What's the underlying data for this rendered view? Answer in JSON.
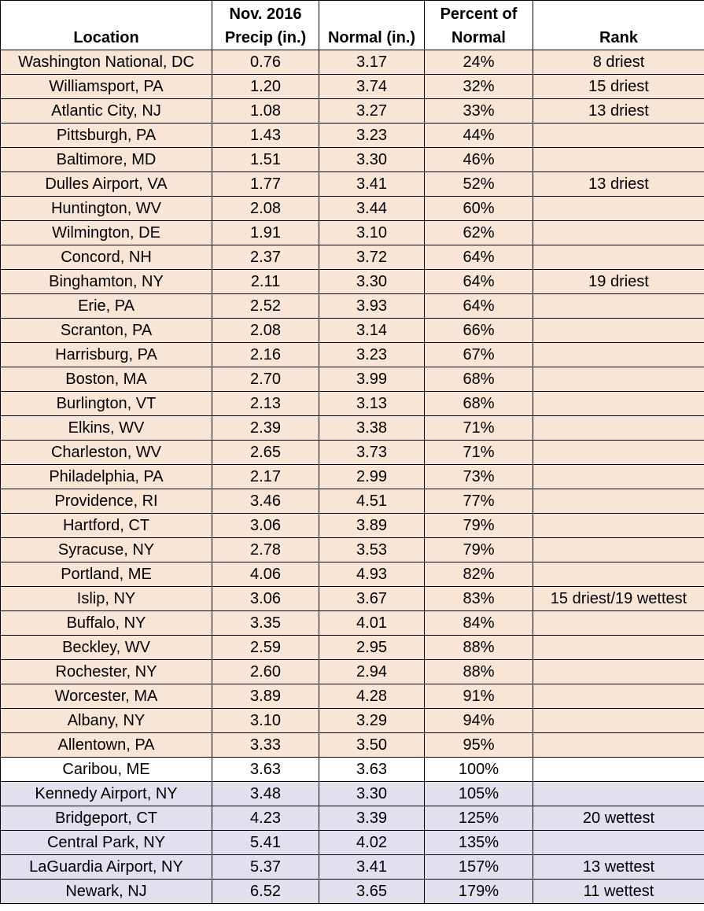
{
  "headers": {
    "location": "Location",
    "precip_line1": "Nov. 2016",
    "precip_line2": "Precip (in.)",
    "normal": "Normal (in.)",
    "percent_line1": "Percent of",
    "percent_line2": "Normal",
    "rank": "Rank"
  },
  "colors": {
    "below_normal": "#f8e5d5",
    "at_normal": "#ffffff",
    "above_normal": "#e2e0ec"
  },
  "rows": [
    {
      "location": "Washington National, DC",
      "precip": "0.76",
      "normal": "3.17",
      "percent": "24%",
      "rank": "8 driest",
      "category": "dry"
    },
    {
      "location": "Williamsport, PA",
      "precip": "1.20",
      "normal": "3.74",
      "percent": "32%",
      "rank": "15 driest",
      "category": "dry"
    },
    {
      "location": "Atlantic City, NJ",
      "precip": "1.08",
      "normal": "3.27",
      "percent": "33%",
      "rank": "13 driest",
      "category": "dry"
    },
    {
      "location": "Pittsburgh, PA",
      "precip": "1.43",
      "normal": "3.23",
      "percent": "44%",
      "rank": "",
      "category": "dry"
    },
    {
      "location": "Baltimore, MD",
      "precip": "1.51",
      "normal": "3.30",
      "percent": "46%",
      "rank": "",
      "category": "dry"
    },
    {
      "location": "Dulles Airport, VA",
      "precip": "1.77",
      "normal": "3.41",
      "percent": "52%",
      "rank": "13 driest",
      "category": "dry"
    },
    {
      "location": "Huntington, WV",
      "precip": "2.08",
      "normal": "3.44",
      "percent": "60%",
      "rank": "",
      "category": "dry"
    },
    {
      "location": "Wilmington, DE",
      "precip": "1.91",
      "normal": "3.10",
      "percent": "62%",
      "rank": "",
      "category": "dry"
    },
    {
      "location": "Concord, NH",
      "precip": "2.37",
      "normal": "3.72",
      "percent": "64%",
      "rank": "",
      "category": "dry"
    },
    {
      "location": "Binghamton, NY",
      "precip": "2.11",
      "normal": "3.30",
      "percent": "64%",
      "rank": "19 driest",
      "category": "dry"
    },
    {
      "location": "Erie, PA",
      "precip": "2.52",
      "normal": "3.93",
      "percent": "64%",
      "rank": "",
      "category": "dry"
    },
    {
      "location": "Scranton, PA",
      "precip": "2.08",
      "normal": "3.14",
      "percent": "66%",
      "rank": "",
      "category": "dry"
    },
    {
      "location": "Harrisburg, PA",
      "precip": "2.16",
      "normal": "3.23",
      "percent": "67%",
      "rank": "",
      "category": "dry"
    },
    {
      "location": "Boston, MA",
      "precip": "2.70",
      "normal": "3.99",
      "percent": "68%",
      "rank": "",
      "category": "dry"
    },
    {
      "location": "Burlington, VT",
      "precip": "2.13",
      "normal": "3.13",
      "percent": "68%",
      "rank": "",
      "category": "dry"
    },
    {
      "location": "Elkins, WV",
      "precip": "2.39",
      "normal": "3.38",
      "percent": "71%",
      "rank": "",
      "category": "dry"
    },
    {
      "location": "Charleston, WV",
      "precip": "2.65",
      "normal": "3.73",
      "percent": "71%",
      "rank": "",
      "category": "dry"
    },
    {
      "location": "Philadelphia, PA",
      "precip": "2.17",
      "normal": "2.99",
      "percent": "73%",
      "rank": "",
      "category": "dry"
    },
    {
      "location": "Providence, RI",
      "precip": "3.46",
      "normal": "4.51",
      "percent": "77%",
      "rank": "",
      "category": "dry"
    },
    {
      "location": "Hartford, CT",
      "precip": "3.06",
      "normal": "3.89",
      "percent": "79%",
      "rank": "",
      "category": "dry"
    },
    {
      "location": "Syracuse, NY",
      "precip": "2.78",
      "normal": "3.53",
      "percent": "79%",
      "rank": "",
      "category": "dry"
    },
    {
      "location": "Portland, ME",
      "precip": "4.06",
      "normal": "4.93",
      "percent": "82%",
      "rank": "",
      "category": "dry"
    },
    {
      "location": "Islip, NY",
      "precip": "3.06",
      "normal": "3.67",
      "percent": "83%",
      "rank": "15 driest/19 wettest",
      "category": "dry"
    },
    {
      "location": "Buffalo, NY",
      "precip": "3.35",
      "normal": "4.01",
      "percent": "84%",
      "rank": "",
      "category": "dry"
    },
    {
      "location": "Beckley, WV",
      "precip": "2.59",
      "normal": "2.95",
      "percent": "88%",
      "rank": "",
      "category": "dry"
    },
    {
      "location": "Rochester, NY",
      "precip": "2.60",
      "normal": "2.94",
      "percent": "88%",
      "rank": "",
      "category": "dry"
    },
    {
      "location": "Worcester, MA",
      "precip": "3.89",
      "normal": "4.28",
      "percent": "91%",
      "rank": "",
      "category": "dry"
    },
    {
      "location": "Albany, NY",
      "precip": "3.10",
      "normal": "3.29",
      "percent": "94%",
      "rank": "",
      "category": "dry"
    },
    {
      "location": "Allentown, PA",
      "precip": "3.33",
      "normal": "3.50",
      "percent": "95%",
      "rank": "",
      "category": "dry"
    },
    {
      "location": "Caribou, ME",
      "precip": "3.63",
      "normal": "3.63",
      "percent": "100%",
      "rank": "",
      "category": "normal"
    },
    {
      "location": "Kennedy Airport, NY",
      "precip": "3.48",
      "normal": "3.30",
      "percent": "105%",
      "rank": "",
      "category": "wet"
    },
    {
      "location": "Bridgeport, CT",
      "precip": "4.23",
      "normal": "3.39",
      "percent": "125%",
      "rank": "20 wettest",
      "category": "wet"
    },
    {
      "location": "Central Park, NY",
      "precip": "5.41",
      "normal": "4.02",
      "percent": "135%",
      "rank": "",
      "category": "wet"
    },
    {
      "location": "LaGuardia Airport, NY",
      "precip": "5.37",
      "normal": "3.41",
      "percent": "157%",
      "rank": "13 wettest",
      "category": "wet"
    },
    {
      "location": "Newark, NJ",
      "precip": "6.52",
      "normal": "3.65",
      "percent": "179%",
      "rank": "11 wettest",
      "category": "wet"
    }
  ]
}
